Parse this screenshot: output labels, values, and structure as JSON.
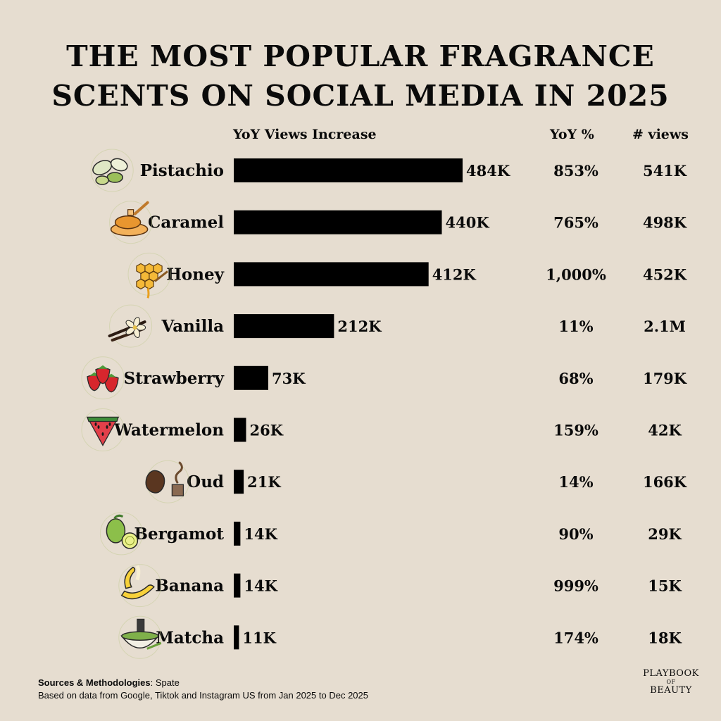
{
  "title": {
    "line1": "THE MOST POPULAR FRAGRANCE",
    "line2": "SCENTS ON SOCIAL MEDIA IN 2025"
  },
  "columns": {
    "bar_header": "YoY Views Increase",
    "yoy_header": "YoY %",
    "views_header": "# views"
  },
  "chart_data": {
    "type": "bar",
    "orientation": "horizontal",
    "categories": [
      "Pistachio",
      "Caramel",
      "Honey",
      "Vanilla",
      "Strawberry",
      "Watermelon",
      "Oud",
      "Bergamot",
      "Banana",
      "Matcha"
    ],
    "values": [
      484,
      440,
      412,
      212,
      73,
      26,
      21,
      14,
      14,
      11
    ],
    "value_labels": [
      "484K",
      "440K",
      "412K",
      "212K",
      "73K",
      "26K",
      "21K",
      "14K",
      "14K",
      "11K"
    ],
    "yoy_percent": [
      "853%",
      "765%",
      "1,000%",
      "11%",
      "68%",
      "159%",
      "14%",
      "90%",
      "999%",
      "174%"
    ],
    "views": [
      "541K",
      "498K",
      "452K",
      "2.1M",
      "179K",
      "42K",
      "166K",
      "29K",
      "15K",
      "18K"
    ],
    "xlim": [
      0,
      484
    ],
    "bar_color": "#000000",
    "icons": [
      "pistachio-icon",
      "caramel-icon",
      "honey-icon",
      "vanilla-icon",
      "strawberry-icon",
      "watermelon-icon",
      "oud-icon",
      "bergamot-icon",
      "banana-icon",
      "matcha-icon"
    ]
  },
  "footer": {
    "sources_label": "Sources & Methodologies",
    "sources_value": ": Spate",
    "note": "Based on data from Google, Tiktok and Instagram US from Jan 2025 to Dec 2025"
  },
  "brand": {
    "line1": "PLAYBOOK",
    "of": "OF",
    "line2": "BEAUTY"
  }
}
